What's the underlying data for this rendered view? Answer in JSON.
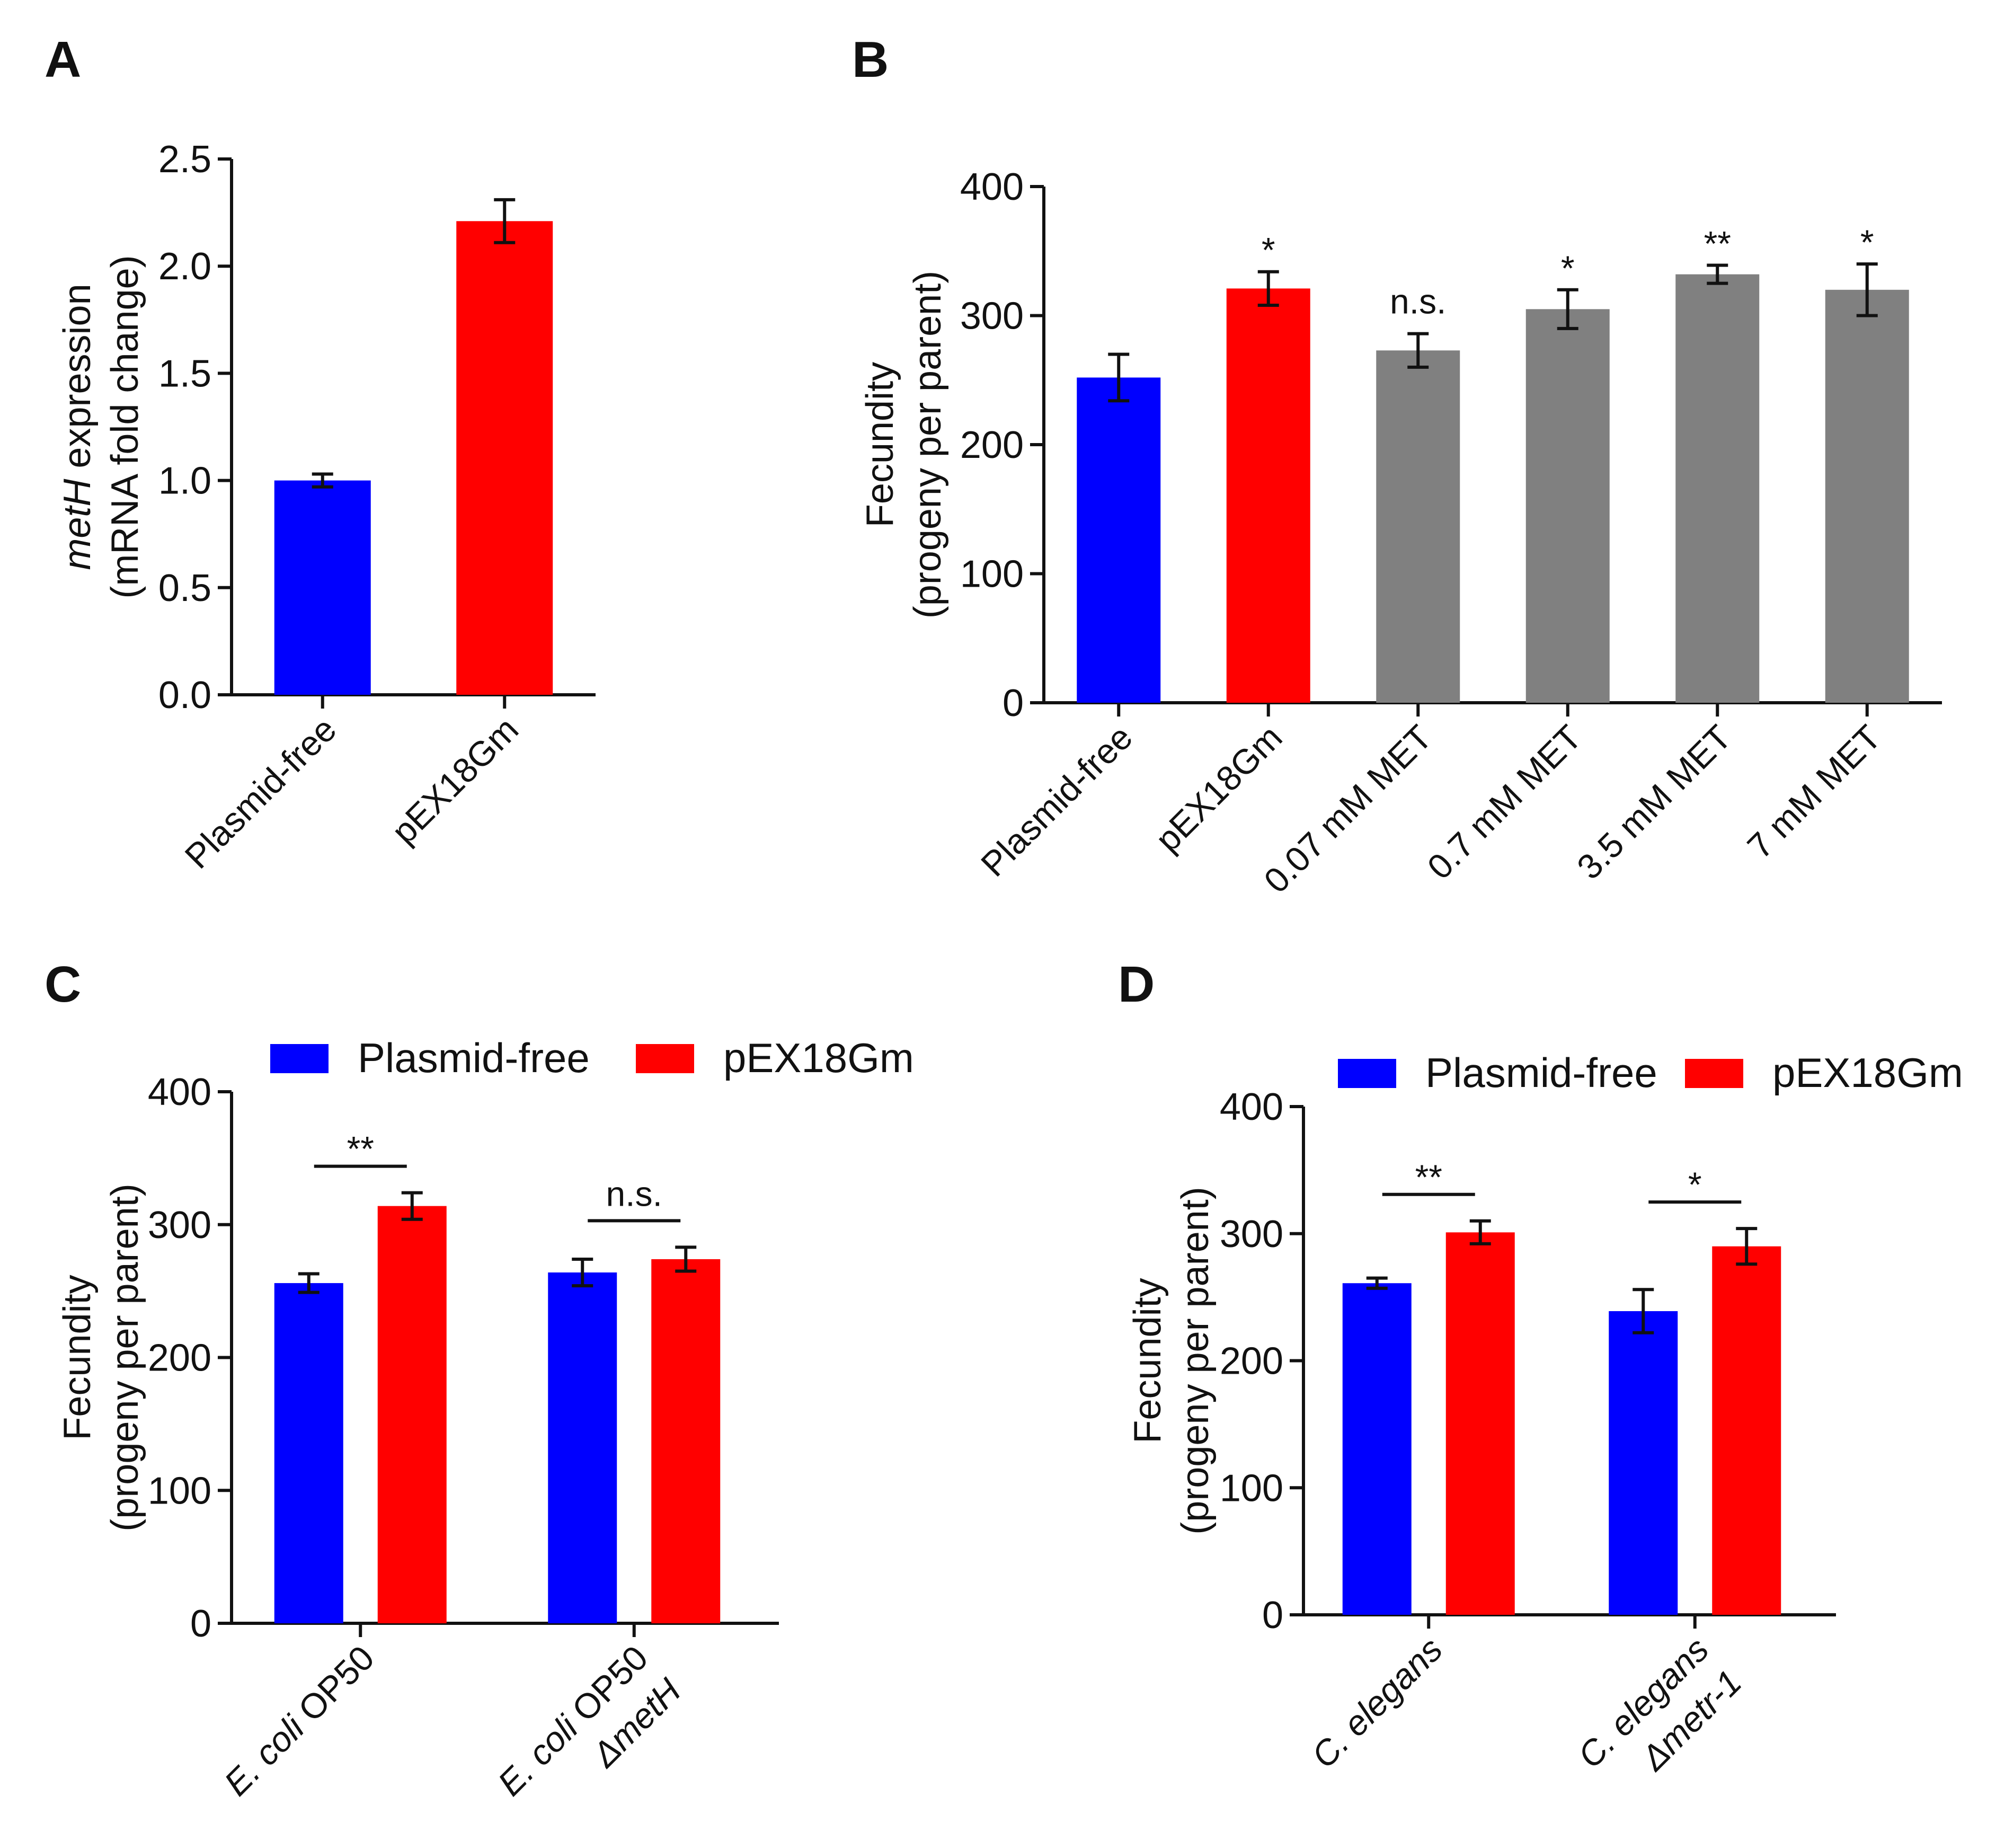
{
  "colors": {
    "plasmid_free": "#0000ff",
    "pEX18Gm": "#ff0000",
    "met": "#808080",
    "axis": "#111111"
  },
  "chart_data": [
    {
      "panel": "A",
      "type": "bar",
      "ylabel_parts": [
        {
          "text": "metH",
          "italic": true
        },
        {
          "text": " expression",
          "italic": false
        }
      ],
      "ylabel2": "(mRNA fold change)",
      "ylim": [
        0,
        2.5
      ],
      "yticks": [
        "0.0",
        "0.5",
        "1.0",
        "1.5",
        "2.0",
        "2.5"
      ],
      "categories": [
        {
          "parts": [
            {
              "text": "Plasmid-free",
              "italic": false
            }
          ]
        },
        {
          "parts": [
            {
              "text": "pEX18Gm",
              "italic": false
            }
          ]
        }
      ],
      "values": [
        1.0,
        2.21
      ],
      "errors": [
        0.03,
        0.1
      ],
      "colors": [
        "#0000ff",
        "#ff0000"
      ],
      "annotations": [
        "",
        ""
      ]
    },
    {
      "panel": "B",
      "type": "bar",
      "ylabel": "Fecundity",
      "ylabel2": "(progeny per parent)",
      "ylim": [
        0,
        400
      ],
      "yticks": [
        "0",
        "100",
        "200",
        "300",
        "400"
      ],
      "categories": [
        {
          "parts": [
            {
              "text": "Plasmid-free",
              "italic": false
            }
          ]
        },
        {
          "parts": [
            {
              "text": "pEX18Gm",
              "italic": false
            }
          ]
        },
        {
          "parts": [
            {
              "text": "0.07 mM MET",
              "italic": false
            }
          ]
        },
        {
          "parts": [
            {
              "text": "0.7 mM MET",
              "italic": false
            }
          ]
        },
        {
          "parts": [
            {
              "text": "3.5 mM MET",
              "italic": false
            }
          ]
        },
        {
          "parts": [
            {
              "text": "7 mM MET",
              "italic": false
            }
          ]
        }
      ],
      "values": [
        252,
        321,
        273,
        305,
        332,
        320
      ],
      "errors": [
        18,
        13,
        13,
        15,
        7,
        20
      ],
      "colors": [
        "#0000ff",
        "#ff0000",
        "#808080",
        "#808080",
        "#808080",
        "#808080"
      ],
      "annotations": [
        "",
        "*",
        "n.s.",
        "*",
        "**",
        "*"
      ]
    },
    {
      "panel": "C",
      "type": "bar",
      "ylabel": "Fecundity",
      "ylabel2": "(progeny per parent)",
      "ylim": [
        0,
        400
      ],
      "yticks": [
        "0",
        "100",
        "200",
        "300",
        "400"
      ],
      "legend": [
        "Plasmid-free",
        "pEX18Gm"
      ],
      "groups": [
        {
          "lines": [
            [
              {
                "text": "E. coli",
                "italic": true
              },
              {
                "text": " OP50",
                "italic": false
              }
            ]
          ]
        },
        {
          "lines": [
            [
              {
                "text": "E. coli",
                "italic": true
              },
              {
                "text": " OP50",
                "italic": false
              }
            ],
            [
              {
                "text": "ΔmetH",
                "italic": true
              }
            ]
          ]
        }
      ],
      "series": [
        {
          "name": "Plasmid-free",
          "values": [
            256,
            264
          ],
          "errors": [
            7,
            10
          ]
        },
        {
          "name": "pEX18Gm",
          "values": [
            314,
            274
          ],
          "errors": [
            10,
            9
          ]
        }
      ],
      "brackets": [
        "**",
        "n.s."
      ]
    },
    {
      "panel": "D",
      "type": "bar",
      "ylabel": "Fecundity",
      "ylabel2": "(progeny per parent)",
      "ylim": [
        0,
        400
      ],
      "yticks": [
        "0",
        "100",
        "200",
        "300",
        "400"
      ],
      "legend": [
        "Plasmid-free",
        "pEX18Gm"
      ],
      "groups": [
        {
          "lines": [
            [
              {
                "text": "C. elegans",
                "italic": true
              }
            ]
          ]
        },
        {
          "lines": [
            [
              {
                "text": "C. elegans",
                "italic": true
              }
            ],
            [
              {
                "text": "Δmetr-1",
                "italic": true
              }
            ]
          ]
        }
      ],
      "series": [
        {
          "name": "Plasmid-free",
          "values": [
            261,
            239
          ],
          "errors": [
            4,
            17
          ]
        },
        {
          "name": "pEX18Gm",
          "values": [
            301,
            290
          ],
          "errors": [
            9,
            14
          ]
        }
      ],
      "brackets": [
        "**",
        "*"
      ]
    }
  ]
}
